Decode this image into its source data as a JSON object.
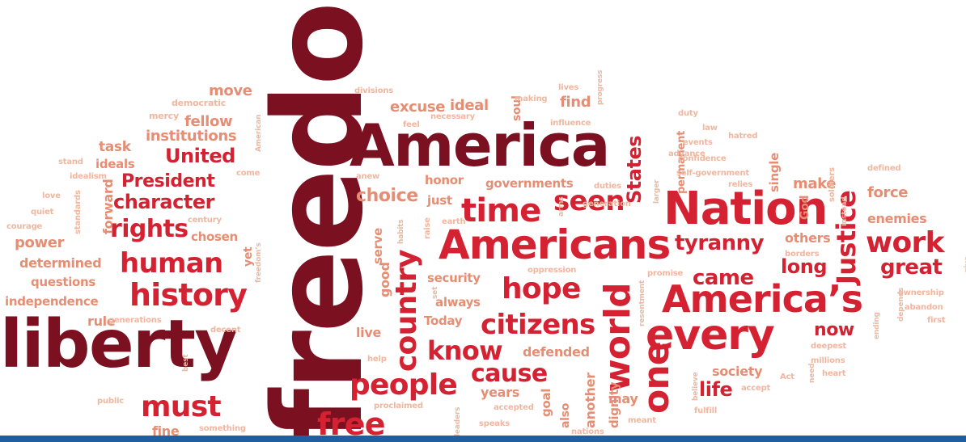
{
  "colors": {
    "burgundy": "#7a1020",
    "red": "#d42232",
    "salmon": "#e58e74",
    "light": "#efb79f",
    "bar": "#1f5fa0"
  },
  "words": [
    {
      "text": "freedom",
      "tone": "burgundy"
    },
    {
      "text": "liberty",
      "tone": "burgundy"
    },
    {
      "text": "America",
      "tone": "burgundy"
    },
    {
      "text": "Nation",
      "tone": "red"
    },
    {
      "text": "Americans",
      "tone": "red"
    },
    {
      "text": "America’s",
      "tone": "red"
    },
    {
      "text": "every",
      "tone": "red"
    },
    {
      "text": "one",
      "tone": "red"
    },
    {
      "text": "world",
      "tone": "red"
    },
    {
      "text": "country",
      "tone": "red"
    },
    {
      "text": "history",
      "tone": "red"
    },
    {
      "text": "human",
      "tone": "red"
    },
    {
      "text": "rights",
      "tone": "red"
    },
    {
      "text": "character",
      "tone": "red"
    },
    {
      "text": "President",
      "tone": "red"
    },
    {
      "text": "United",
      "tone": "red"
    },
    {
      "text": "States",
      "tone": "red"
    },
    {
      "text": "Justice",
      "tone": "red"
    },
    {
      "text": "time",
      "tone": "red"
    },
    {
      "text": "seen",
      "tone": "red"
    },
    {
      "text": "work",
      "tone": "red"
    },
    {
      "text": "great",
      "tone": "red"
    },
    {
      "text": "tyranny",
      "tone": "red"
    },
    {
      "text": "hope",
      "tone": "red"
    },
    {
      "text": "came",
      "tone": "red"
    },
    {
      "text": "citizens",
      "tone": "red"
    },
    {
      "text": "know",
      "tone": "red"
    },
    {
      "text": "cause",
      "tone": "red"
    },
    {
      "text": "people",
      "tone": "red"
    },
    {
      "text": "must",
      "tone": "red"
    },
    {
      "text": "free",
      "tone": "red"
    },
    {
      "text": "long",
      "tone": "red"
    },
    {
      "text": "now",
      "tone": "red"
    },
    {
      "text": "life",
      "tone": "red"
    },
    {
      "text": "force",
      "tone": "salmon"
    },
    {
      "text": "enemies",
      "tone": "salmon"
    },
    {
      "text": "make",
      "tone": "salmon"
    },
    {
      "text": "others",
      "tone": "salmon"
    },
    {
      "text": "choice",
      "tone": "salmon"
    },
    {
      "text": "honor",
      "tone": "salmon"
    },
    {
      "text": "governments",
      "tone": "salmon"
    },
    {
      "text": "just",
      "tone": "salmon"
    },
    {
      "text": "security",
      "tone": "salmon"
    },
    {
      "text": "always",
      "tone": "salmon"
    },
    {
      "text": "Today",
      "tone": "salmon"
    },
    {
      "text": "live",
      "tone": "salmon"
    },
    {
      "text": "good",
      "tone": "salmon"
    },
    {
      "text": "serve",
      "tone": "salmon"
    },
    {
      "text": "excuse",
      "tone": "salmon"
    },
    {
      "text": "ideal",
      "tone": "salmon"
    },
    {
      "text": "find",
      "tone": "salmon"
    },
    {
      "text": "soul",
      "tone": "salmon"
    },
    {
      "text": "move",
      "tone": "salmon"
    },
    {
      "text": "fellow",
      "tone": "salmon"
    },
    {
      "text": "institutions",
      "tone": "salmon"
    },
    {
      "text": "task",
      "tone": "salmon"
    },
    {
      "text": "ideals",
      "tone": "salmon"
    },
    {
      "text": "power",
      "tone": "salmon"
    },
    {
      "text": "chosen",
      "tone": "salmon"
    },
    {
      "text": "determined",
      "tone": "salmon"
    },
    {
      "text": "questions",
      "tone": "salmon"
    },
    {
      "text": "independence",
      "tone": "salmon"
    },
    {
      "text": "rule",
      "tone": "salmon"
    },
    {
      "text": "forward",
      "tone": "salmon"
    },
    {
      "text": "yet",
      "tone": "salmon"
    },
    {
      "text": "defended",
      "tone": "salmon"
    },
    {
      "text": "society",
      "tone": "salmon"
    },
    {
      "text": "may",
      "tone": "salmon"
    },
    {
      "text": "years",
      "tone": "salmon"
    },
    {
      "text": "another",
      "tone": "salmon"
    },
    {
      "text": "dignity",
      "tone": "salmon"
    },
    {
      "text": "goal",
      "tone": "salmon"
    },
    {
      "text": "also",
      "tone": "salmon"
    },
    {
      "text": "single",
      "tone": "salmon"
    },
    {
      "text": "permanent",
      "tone": "salmon"
    },
    {
      "text": "God",
      "tone": "salmon"
    },
    {
      "text": "fine",
      "tone": "salmon"
    },
    {
      "text": "democratic",
      "tone": "light"
    },
    {
      "text": "mercy",
      "tone": "light"
    },
    {
      "text": "stand",
      "tone": "light"
    },
    {
      "text": "idealism",
      "tone": "light"
    },
    {
      "text": "love",
      "tone": "light"
    },
    {
      "text": "quiet",
      "tone": "light"
    },
    {
      "text": "courage",
      "tone": "light"
    },
    {
      "text": "standards",
      "tone": "light"
    },
    {
      "text": "century",
      "tone": "light"
    },
    {
      "text": "come",
      "tone": "light"
    },
    {
      "text": "American",
      "tone": "light"
    },
    {
      "text": "freedom’s",
      "tone": "light"
    },
    {
      "text": "generations",
      "tone": "light"
    },
    {
      "text": "decent",
      "tone": "light"
    },
    {
      "text": "best",
      "tone": "light"
    },
    {
      "text": "public",
      "tone": "light"
    },
    {
      "text": "something",
      "tone": "light"
    },
    {
      "text": "divisions",
      "tone": "light"
    },
    {
      "text": "making",
      "tone": "light"
    },
    {
      "text": "lives",
      "tone": "light"
    },
    {
      "text": "progress",
      "tone": "light"
    },
    {
      "text": "feel",
      "tone": "light"
    },
    {
      "text": "necessary",
      "tone": "light"
    },
    {
      "text": "influence",
      "tone": "light"
    },
    {
      "text": "advance",
      "tone": "light"
    },
    {
      "text": "duty",
      "tone": "light"
    },
    {
      "text": "law",
      "tone": "light"
    },
    {
      "text": "events",
      "tone": "light"
    },
    {
      "text": "hatred",
      "tone": "light"
    },
    {
      "text": "confidence",
      "tone": "light"
    },
    {
      "text": "self-government",
      "tone": "light"
    },
    {
      "text": "relies",
      "tone": "light"
    },
    {
      "text": "soldiers",
      "tone": "light"
    },
    {
      "text": "defined",
      "tone": "light"
    },
    {
      "text": "anew",
      "tone": "light"
    },
    {
      "text": "duties",
      "tone": "light"
    },
    {
      "text": "generation",
      "tone": "light"
    },
    {
      "text": "arms",
      "tone": "light"
    },
    {
      "text": "larger",
      "tone": "light"
    },
    {
      "text": "earth",
      "tone": "light"
    },
    {
      "text": "raise",
      "tone": "light"
    },
    {
      "text": "habits",
      "tone": "light"
    },
    {
      "text": "instead",
      "tone": "light"
    },
    {
      "text": "borders",
      "tone": "light"
    },
    {
      "text": "oppression",
      "tone": "light"
    },
    {
      "text": "promise",
      "tone": "light"
    },
    {
      "text": "ownership",
      "tone": "light"
    },
    {
      "text": "abandon",
      "tone": "light"
    },
    {
      "text": "first",
      "tone": "light"
    },
    {
      "text": "depends",
      "tone": "light"
    },
    {
      "text": "ending",
      "tone": "light"
    },
    {
      "text": "give",
      "tone": "light"
    },
    {
      "text": "resentment",
      "tone": "light"
    },
    {
      "text": "deepest",
      "tone": "light"
    },
    {
      "text": "millions",
      "tone": "light"
    },
    {
      "text": "heart",
      "tone": "light"
    },
    {
      "text": "need",
      "tone": "light"
    },
    {
      "text": "Act",
      "tone": "light"
    },
    {
      "text": "accept",
      "tone": "light"
    },
    {
      "text": "believe",
      "tone": "light"
    },
    {
      "text": "fulfill",
      "tone": "light"
    },
    {
      "text": "meant",
      "tone": "light"
    },
    {
      "text": "nations",
      "tone": "light"
    },
    {
      "text": "accepted",
      "tone": "light"
    },
    {
      "text": "speaks",
      "tone": "light"
    },
    {
      "text": "leaders",
      "tone": "light"
    },
    {
      "text": "proclaimed",
      "tone": "light"
    },
    {
      "text": "help",
      "tone": "light"
    },
    {
      "text": "set",
      "tone": "light"
    }
  ]
}
